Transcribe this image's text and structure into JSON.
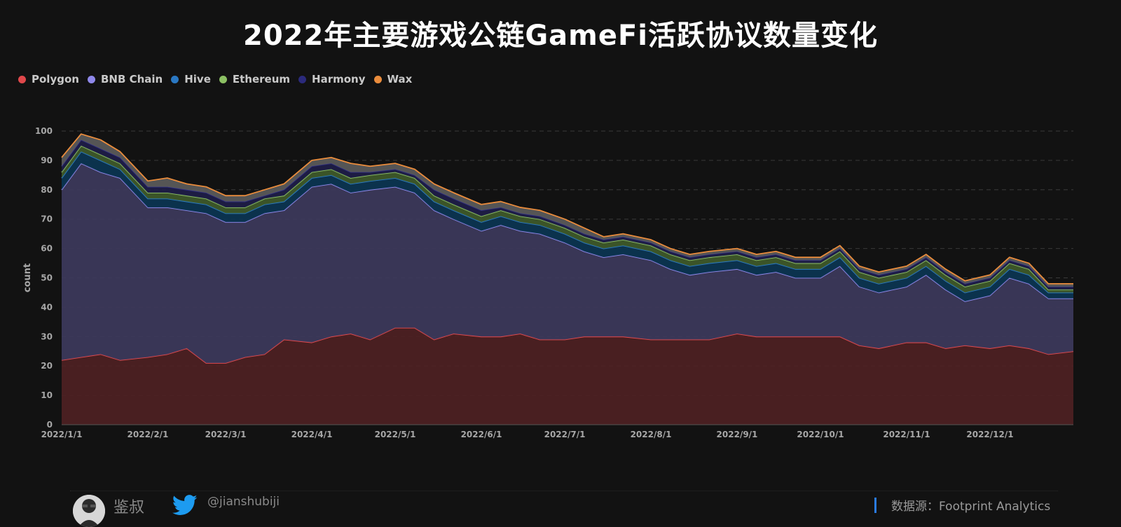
{
  "title": "2022年主要游戏公链GameFi活跃协议数量变化",
  "legend": [
    {
      "name": "Polygon",
      "color": "#e0484b"
    },
    {
      "name": "BNB Chain",
      "color": "#8f88ea"
    },
    {
      "name": "Hive",
      "color": "#2a78c3"
    },
    {
      "name": "Ethereum",
      "color": "#8cc063"
    },
    {
      "name": "Harmony",
      "color": "#2b2a7c"
    },
    {
      "name": "Wax",
      "color": "#ea8c3c"
    }
  ],
  "footer": {
    "author": "鉴叔",
    "handle": "@jianshubiji",
    "source": "数据源：Footprint  Analytics"
  },
  "chart_data": {
    "type": "area",
    "stacked": true,
    "ylabel": "count",
    "ylim": [
      0,
      100
    ],
    "yticks": [
      0,
      10,
      20,
      30,
      40,
      50,
      60,
      70,
      80,
      90,
      100
    ],
    "xlabel": "",
    "xticks": [
      "2022/1/1",
      "2022/2/1",
      "2022/3/1",
      "2022/4/1",
      "2022/5/1",
      "2022/6/1",
      "2022/7/1",
      "2022/8/1",
      "2022/9/1",
      "2022/10/1",
      "2022/11/1",
      "2022/12/1"
    ],
    "x": [
      "2022/1/1",
      "2022/1/8",
      "2022/1/15",
      "2022/1/22",
      "2022/2/1",
      "2022/2/8",
      "2022/2/15",
      "2022/2/22",
      "2022/3/1",
      "2022/3/8",
      "2022/3/15",
      "2022/3/22",
      "2022/4/1",
      "2022/4/8",
      "2022/4/15",
      "2022/4/22",
      "2022/5/1",
      "2022/5/8",
      "2022/5/15",
      "2022/5/22",
      "2022/6/1",
      "2022/6/8",
      "2022/6/15",
      "2022/6/22",
      "2022/7/1",
      "2022/7/8",
      "2022/7/15",
      "2022/7/22",
      "2022/8/1",
      "2022/8/8",
      "2022/8/15",
      "2022/8/22",
      "2022/9/1",
      "2022/9/8",
      "2022/9/15",
      "2022/9/22",
      "2022/10/1",
      "2022/10/8",
      "2022/10/15",
      "2022/10/22",
      "2022/11/1",
      "2022/11/8",
      "2022/11/15",
      "2022/11/22",
      "2022/12/1",
      "2022/12/8",
      "2022/12/15",
      "2022/12/22",
      "2022/12/31"
    ],
    "series": [
      {
        "name": "Polygon",
        "values": [
          22,
          23,
          24,
          22,
          23,
          24,
          26,
          21,
          21,
          23,
          24,
          29,
          28,
          30,
          31,
          29,
          33,
          33,
          29,
          31,
          30,
          30,
          31,
          29,
          29,
          30,
          30,
          30,
          29,
          29,
          29,
          29,
          31,
          30,
          30,
          30,
          30,
          30,
          27,
          26,
          28,
          28,
          26,
          27,
          26,
          27,
          26,
          24,
          25
        ]
      },
      {
        "name": "BNB Chain",
        "values": [
          58,
          66,
          62,
          62,
          51,
          50,
          47,
          51,
          48,
          46,
          48,
          44,
          53,
          52,
          48,
          51,
          48,
          46,
          44,
          39,
          36,
          38,
          35,
          36,
          33,
          29,
          27,
          28,
          27,
          24,
          22,
          23,
          22,
          21,
          22,
          20,
          20,
          24,
          20,
          19,
          19,
          23,
          20,
          15,
          18,
          23,
          22,
          19,
          18
        ]
      },
      {
        "name": "Hive",
        "values": [
          4,
          4,
          4,
          3,
          3,
          3,
          3,
          3,
          3,
          3,
          3,
          3,
          3,
          3,
          3,
          3,
          3,
          3,
          3,
          3,
          3,
          3,
          3,
          3,
          3,
          3,
          3,
          3,
          3,
          3,
          3,
          3,
          3,
          3,
          3,
          3,
          3,
          3,
          3,
          3,
          3,
          3,
          3,
          3,
          3,
          3,
          3,
          2,
          2
        ]
      },
      {
        "name": "Ethereum",
        "values": [
          2,
          2,
          2,
          2,
          2,
          2,
          2,
          2,
          2,
          2,
          2,
          2,
          2,
          2,
          2,
          2,
          2,
          2,
          2,
          2,
          2,
          2,
          2,
          2,
          2,
          2,
          2,
          2,
          2,
          2,
          2,
          2,
          2,
          2,
          2,
          2,
          2,
          2,
          2,
          2,
          2,
          2,
          2,
          2,
          2,
          2,
          2,
          1,
          1
        ]
      },
      {
        "name": "Harmony",
        "values": [
          2,
          2,
          2,
          2,
          2,
          2,
          2,
          2,
          2,
          2,
          1,
          2,
          2,
          2,
          2,
          1,
          1,
          1,
          2,
          2,
          2,
          1,
          1,
          1,
          1,
          1,
          1,
          1,
          1,
          1,
          1,
          1,
          1,
          1,
          1,
          1,
          1,
          1,
          1,
          1,
          1,
          1,
          1,
          1,
          1,
          1,
          1,
          1,
          1
        ]
      },
      {
        "name": "Wax",
        "values": [
          3,
          2,
          3,
          2,
          2,
          3,
          2,
          2,
          2,
          2,
          2,
          2,
          2,
          2,
          3,
          2,
          2,
          2,
          2,
          2,
          2,
          2,
          2,
          2,
          2,
          2,
          1,
          1,
          1,
          1,
          1,
          1,
          1,
          1,
          1,
          1,
          1,
          1,
          1,
          1,
          1,
          1,
          1,
          1,
          1,
          1,
          1,
          1,
          1
        ]
      }
    ]
  }
}
